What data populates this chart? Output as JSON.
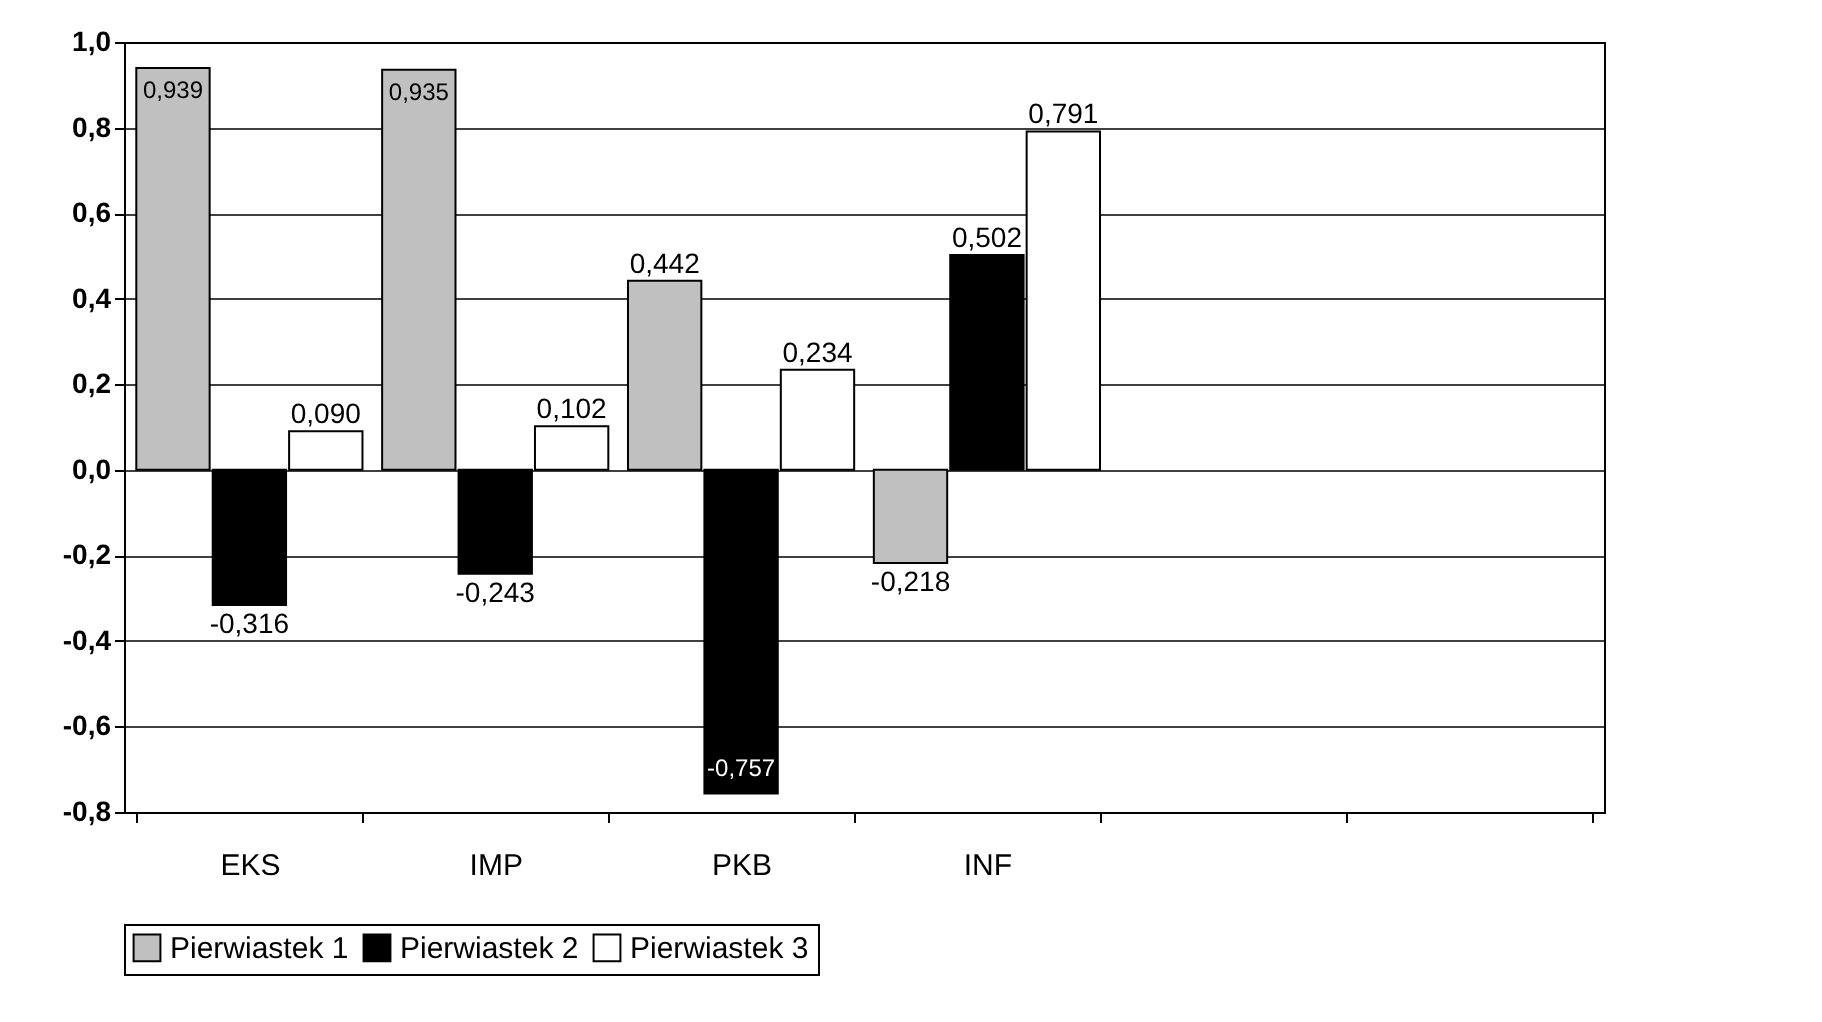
{
  "chart_data": {
    "type": "bar",
    "categories": [
      "EKS",
      "IMP",
      "PKB",
      "INF",
      null,
      null
    ],
    "series": [
      {
        "name": "Pierwiastek 1",
        "color": "#c0c0c0",
        "values": [
          0.939,
          0.935,
          0.442,
          -0.218,
          null,
          null
        ],
        "value_labels": [
          "0,939",
          "0,935",
          "0,442",
          "-0,218",
          null,
          null
        ]
      },
      {
        "name": "Pierwiastek 2",
        "color": "#000000",
        "values": [
          -0.316,
          -0.243,
          -0.757,
          0.502,
          null,
          null
        ],
        "value_labels": [
          "-0,316",
          "-0,243",
          "-0,757",
          "0,502",
          null,
          null
        ]
      },
      {
        "name": "Pierwiastek 3",
        "color": "#ffffff",
        "values": [
          0.09,
          0.102,
          0.234,
          0.791,
          null,
          null
        ],
        "value_labels": [
          "0,090",
          "0,102",
          "0,234",
          "0,791",
          null,
          null
        ]
      }
    ],
    "ylim": [
      -0.8,
      1.0
    ],
    "yticks": [
      {
        "value": -0.8,
        "label": "-0,8"
      },
      {
        "value": -0.6,
        "label": "-0,6"
      },
      {
        "value": -0.4,
        "label": "-0,4"
      },
      {
        "value": -0.2,
        "label": "-0,2"
      },
      {
        "value": 0,
        "label": "0,0"
      },
      {
        "value": 0.2,
        "label": "0,2"
      },
      {
        "value": 0.4,
        "label": "0,4"
      },
      {
        "value": 0.6,
        "label": "0,6"
      },
      {
        "value": 0.8,
        "label": "0,8"
      },
      {
        "value": 1.0,
        "label": "1,0"
      }
    ],
    "grid": "y",
    "legend": "bottom"
  }
}
